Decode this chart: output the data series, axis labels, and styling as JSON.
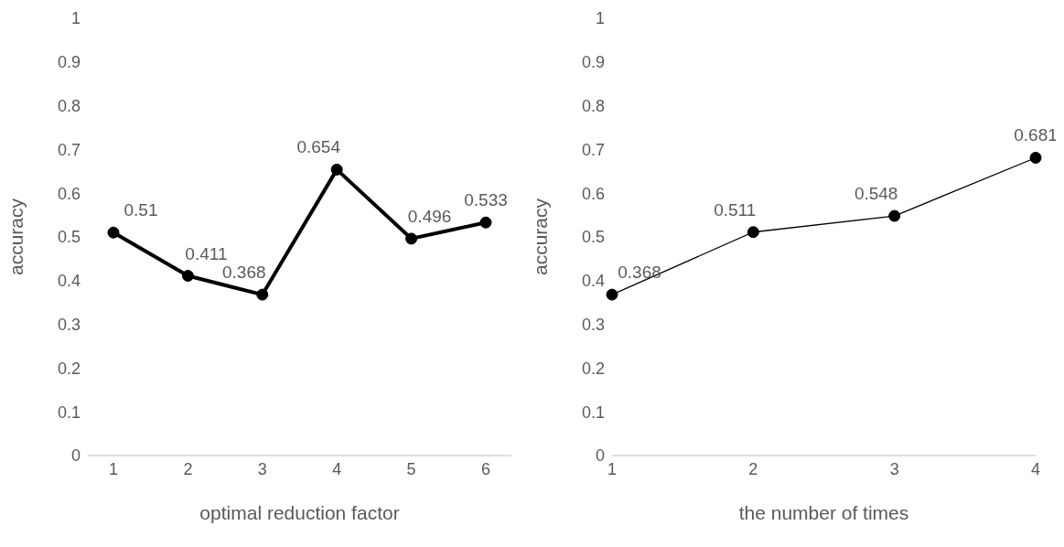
{
  "chart_data": [
    {
      "type": "line",
      "categories": [
        "1",
        "2",
        "3",
        "4",
        "5",
        "6"
      ],
      "values": [
        0.51,
        0.411,
        0.368,
        0.654,
        0.496,
        0.533
      ],
      "color": "#000000",
      "xlabel": "optimal reduction factor",
      "ylabel": "accuracy",
      "ylim": [
        0,
        1
      ],
      "yticks": [
        0,
        0.1,
        0.2,
        0.3,
        0.4,
        0.5,
        0.6,
        0.7,
        0.8,
        0.9,
        1
      ],
      "data_labels": true,
      "marker": "circle",
      "grid": false,
      "legend": false
    },
    {
      "type": "line",
      "categories": [
        "1",
        "2",
        "3",
        "4"
      ],
      "values": [
        0.368,
        0.511,
        0.548,
        0.681
      ],
      "color": "#000000",
      "xlabel": "the number of times",
      "ylabel": "accuracy",
      "ylim": [
        0,
        1
      ],
      "yticks": [
        0,
        0.1,
        0.2,
        0.3,
        0.4,
        0.5,
        0.6,
        0.7,
        0.8,
        0.9,
        1
      ],
      "data_labels": true,
      "marker": "circle",
      "grid": false,
      "legend": false
    }
  ]
}
